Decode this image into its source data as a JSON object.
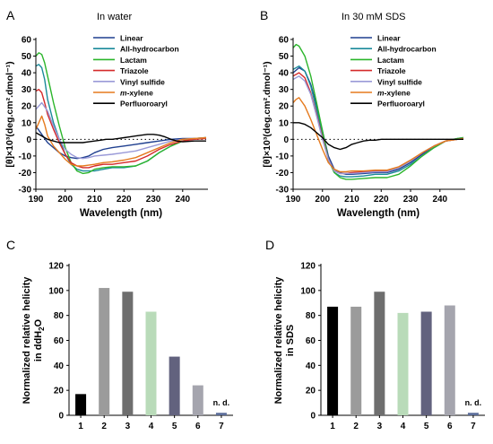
{
  "panels": {
    "A": {
      "letter": "A",
      "title": "In water"
    },
    "B": {
      "letter": "B",
      "title": "In 30 mM SDS"
    },
    "C": {
      "letter": "C"
    },
    "D": {
      "letter": "D"
    }
  },
  "chart_data": [
    {
      "type": "line",
      "panel": "A",
      "title": "In water",
      "xlabel": "Wavelength (nm)",
      "ylabel": "[θ]×10³(deg.cm².dmol⁻¹)",
      "xlim": [
        190,
        248
      ],
      "ylim": [
        -30,
        60
      ],
      "xticks": [
        190,
        200,
        210,
        220,
        230,
        240
      ],
      "yticks": [
        -30,
        -20,
        -10,
        0,
        10,
        20,
        30,
        40,
        50,
        60
      ],
      "zero_line": "dotted",
      "legend_position": "top-right",
      "series": [
        {
          "name": "Linear",
          "color": "#1f3f8f",
          "x": [
            190,
            192,
            194,
            196,
            198,
            200,
            202,
            204,
            206,
            208,
            210,
            213,
            216,
            220,
            224,
            228,
            232,
            236,
            240,
            244,
            248
          ],
          "y": [
            8,
            3,
            -2,
            -5,
            -8,
            -10,
            -11,
            -11.5,
            -11,
            -10,
            -8,
            -6,
            -5,
            -4,
            -3,
            -2,
            -1,
            0,
            0.5,
            0.5,
            0.5
          ]
        },
        {
          "name": "All-hydrocarbon",
          "color": "#1a8a9a",
          "x": [
            190,
            191,
            192,
            193,
            194,
            196,
            198,
            200,
            202,
            204,
            206,
            208,
            210,
            213,
            216,
            220,
            224,
            228,
            232,
            236,
            240,
            244,
            248
          ],
          "y": [
            44,
            45,
            43,
            36,
            24,
            10,
            0,
            -9,
            -15,
            -18,
            -19,
            -19,
            -19,
            -18,
            -17,
            -17,
            -16,
            -13,
            -8,
            -4,
            -1,
            0.5,
            1
          ]
        },
        {
          "name": "Lactam",
          "color": "#2bb52b",
          "x": [
            190,
            191,
            192,
            193,
            194,
            196,
            198,
            200,
            202,
            204,
            206,
            208,
            210,
            213,
            216,
            220,
            224,
            228,
            232,
            236,
            240,
            244,
            248
          ],
          "y": [
            50,
            52,
            51,
            46,
            38,
            22,
            8,
            -5,
            -14,
            -19,
            -20.5,
            -20,
            -18,
            -17,
            -16.5,
            -16.5,
            -16,
            -13,
            -8,
            -4,
            -1,
            0.5,
            1
          ]
        },
        {
          "name": "Triazole",
          "color": "#d42a2a",
          "x": [
            190,
            191,
            192,
            193,
            194,
            196,
            198,
            200,
            202,
            204,
            206,
            208,
            210,
            213,
            216,
            220,
            224,
            228,
            232,
            236,
            240,
            244,
            248
          ],
          "y": [
            29,
            30,
            28,
            22,
            15,
            6,
            -2,
            -9,
            -14,
            -16,
            -17,
            -17,
            -16,
            -15,
            -15,
            -14,
            -13,
            -10,
            -6,
            -3,
            -1,
            0,
            0.5
          ]
        },
        {
          "name": "Vinyl sulfide",
          "color": "#9a9ad8",
          "x": [
            190,
            192,
            194,
            196,
            198,
            200,
            202,
            204,
            206,
            208,
            210,
            213,
            216,
            220,
            224,
            228,
            232,
            236,
            240,
            244,
            248
          ],
          "y": [
            18,
            22,
            17,
            8,
            0,
            -6,
            -9,
            -11,
            -11.5,
            -11,
            -10,
            -9.5,
            -9,
            -8,
            -7,
            -5,
            -3,
            -1,
            0,
            0.5,
            1
          ]
        },
        {
          "name": "m-xylene",
          "color": "#e57a1e",
          "x": [
            190,
            191,
            192,
            193,
            194,
            196,
            198,
            200,
            202,
            204,
            206,
            208,
            210,
            213,
            216,
            220,
            224,
            228,
            232,
            236,
            240,
            244,
            248
          ],
          "y": [
            6,
            10,
            14,
            9,
            2,
            -4,
            -8,
            -12,
            -15,
            -16,
            -16,
            -15.5,
            -15,
            -14,
            -13.5,
            -12.5,
            -11,
            -8,
            -5,
            -2,
            0,
            0.5,
            1
          ]
        },
        {
          "name": "Perfluoroaryl",
          "color": "#000000",
          "x": [
            190,
            192,
            194,
            196,
            198,
            200,
            202,
            204,
            206,
            208,
            210,
            212,
            214,
            216,
            218,
            220,
            222,
            224,
            226,
            228,
            230,
            232,
            234,
            236,
            238,
            240,
            244,
            248
          ],
          "y": [
            4,
            2,
            0,
            -1,
            -2,
            -2,
            -2,
            -2,
            -2,
            -1.5,
            -1,
            -0.5,
            0,
            0,
            0.5,
            1,
            1.5,
            2,
            2.5,
            3,
            3,
            2.5,
            1.5,
            0,
            -1,
            -1.5,
            -1,
            -1
          ]
        }
      ]
    },
    {
      "type": "line",
      "panel": "B",
      "title": "In 30 mM SDS",
      "xlabel": "Wavelength (nm)",
      "ylabel": "[θ]×10³(deg.cm².dmol⁻¹)",
      "xlim": [
        190,
        248
      ],
      "ylim": [
        -30,
        60
      ],
      "xticks": [
        190,
        200,
        210,
        220,
        230,
        240
      ],
      "yticks": [
        -30,
        -20,
        -10,
        0,
        10,
        20,
        30,
        40,
        50,
        60
      ],
      "zero_line": "dotted",
      "legend_position": "top-right",
      "series": [
        {
          "name": "Linear",
          "color": "#1f3f8f",
          "x": [
            190,
            192,
            194,
            196,
            198,
            200,
            202,
            204,
            206,
            208,
            210,
            214,
            218,
            222,
            226,
            230,
            234,
            238,
            242,
            246,
            248
          ],
          "y": [
            40,
            43,
            41,
            33,
            20,
            5,
            -10,
            -18,
            -20,
            -21,
            -21,
            -20.5,
            -20,
            -20,
            -18,
            -14,
            -9,
            -4,
            -1,
            0,
            0.5
          ]
        },
        {
          "name": "All-hydrocarbon",
          "color": "#1a8a9a",
          "x": [
            190,
            192,
            194,
            196,
            198,
            200,
            202,
            204,
            206,
            208,
            210,
            214,
            218,
            222,
            226,
            230,
            234,
            238,
            242,
            246,
            248
          ],
          "y": [
            42,
            44,
            41,
            32,
            18,
            3,
            -12,
            -20,
            -22,
            -22.5,
            -22.5,
            -22,
            -21,
            -21,
            -19,
            -15,
            -10,
            -5,
            -1,
            0.5,
            1
          ]
        },
        {
          "name": "Lactam",
          "color": "#2bb52b",
          "x": [
            190,
            191,
            192,
            194,
            196,
            198,
            200,
            202,
            204,
            206,
            208,
            210,
            214,
            218,
            222,
            226,
            230,
            234,
            238,
            242,
            246,
            248
          ],
          "y": [
            55,
            57,
            56,
            50,
            38,
            22,
            5,
            -12,
            -20,
            -23,
            -24,
            -24,
            -23.5,
            -23,
            -23,
            -21,
            -16,
            -10,
            -5,
            -1,
            0.5,
            1
          ]
        },
        {
          "name": "Triazole",
          "color": "#d42a2a",
          "x": [
            190,
            192,
            194,
            196,
            198,
            200,
            202,
            204,
            206,
            208,
            210,
            214,
            218,
            222,
            226,
            230,
            234,
            238,
            242,
            246,
            248
          ],
          "y": [
            38,
            40,
            37,
            28,
            15,
            1,
            -12,
            -19,
            -20.5,
            -20.5,
            -20,
            -19.5,
            -19,
            -19,
            -17,
            -13,
            -8,
            -4,
            -1,
            0,
            0.5
          ]
        },
        {
          "name": "Vinyl sulfide",
          "color": "#9a9ad8",
          "x": [
            190,
            192,
            194,
            196,
            198,
            200,
            202,
            204,
            206,
            208,
            210,
            214,
            218,
            222,
            226,
            230,
            234,
            238,
            242,
            246,
            248
          ],
          "y": [
            36,
            38,
            35,
            27,
            14,
            0,
            -12,
            -19,
            -20.5,
            -20.5,
            -20.5,
            -20,
            -19.5,
            -19.5,
            -17,
            -13,
            -8,
            -4,
            -1,
            0,
            0.5
          ]
        },
        {
          "name": "m-xylene",
          "color": "#e57a1e",
          "x": [
            190,
            191,
            192,
            194,
            196,
            198,
            200,
            202,
            204,
            206,
            208,
            210,
            214,
            218,
            222,
            226,
            230,
            234,
            238,
            242,
            246,
            248
          ],
          "y": [
            22,
            24,
            25,
            20,
            12,
            3,
            -6,
            -14,
            -18,
            -19.5,
            -19.5,
            -19,
            -19,
            -18.5,
            -18.5,
            -16.5,
            -12.5,
            -8,
            -4,
            -1,
            0,
            0.5
          ]
        },
        {
          "name": "Perfluoroaryl",
          "color": "#000000",
          "x": [
            190,
            192,
            194,
            196,
            198,
            200,
            202,
            204,
            206,
            208,
            210,
            212,
            214,
            216,
            218,
            220,
            224,
            228,
            232,
            236,
            240,
            244,
            248
          ],
          "y": [
            10,
            10,
            9,
            7,
            4,
            1,
            -3,
            -5,
            -6,
            -5,
            -3,
            -2,
            -1,
            -0.5,
            -0.5,
            0,
            0,
            0,
            0,
            0,
            0,
            0,
            0
          ]
        }
      ]
    },
    {
      "type": "bar",
      "panel": "C",
      "ylabel": "Normalized relative helicity",
      "ylabel_line2_prefix": "in ddH",
      "ylabel_line2_sub": "2",
      "ylabel_line2_suffix": "O",
      "ylim": [
        0,
        120
      ],
      "yticks": [
        0,
        20,
        40,
        60,
        80,
        100,
        120
      ],
      "categories": [
        "1",
        "2",
        "3",
        "4",
        "5",
        "6",
        "7"
      ],
      "values": [
        17,
        102,
        99,
        83,
        47,
        24,
        2
      ],
      "colors": [
        "#000000",
        "#9b9b9b",
        "#6e6e6e",
        "#b9dbb9",
        "#62627e",
        "#a5a5ae",
        "#5c6e9a"
      ],
      "annotations": [
        {
          "category": "7",
          "text": "n. d."
        }
      ]
    },
    {
      "type": "bar",
      "panel": "D",
      "ylabel": "Normalized relative helicity",
      "ylabel_line2": "in SDS",
      "ylim": [
        0,
        120
      ],
      "yticks": [
        0,
        20,
        40,
        60,
        80,
        100,
        120
      ],
      "categories": [
        "1",
        "2",
        "3",
        "4",
        "5",
        "6",
        "7"
      ],
      "values": [
        87,
        87,
        99,
        82,
        83,
        88,
        2
      ],
      "colors": [
        "#000000",
        "#9b9b9b",
        "#6e6e6e",
        "#b9dbb9",
        "#62627e",
        "#a5a5ae",
        "#5c6e9a"
      ],
      "annotations": [
        {
          "category": "7",
          "text": "n. d."
        }
      ]
    }
  ]
}
